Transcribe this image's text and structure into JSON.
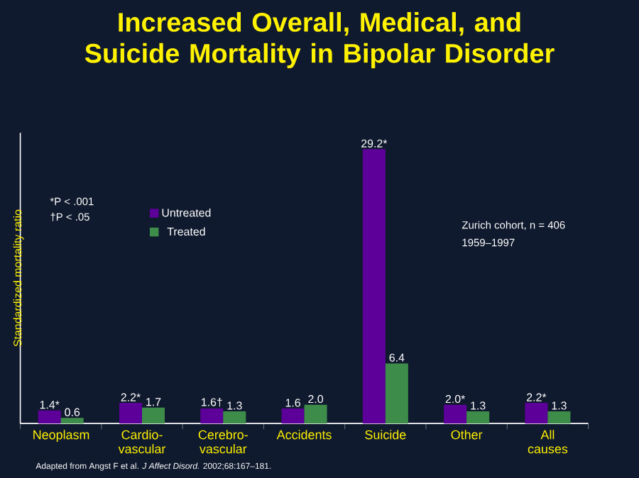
{
  "chart_data": {
    "type": "bar",
    "title": "Increased Overall, Medical, and Suicide Mortality in Bipolar Disorder",
    "ylabel": "Standardized mortality ratio",
    "categories": [
      "Neoplasm",
      "Cardio-vascular",
      "Cerebro-vascular",
      "Accidents",
      "Suicide",
      "Other",
      "All causes"
    ],
    "series": [
      {
        "name": "Untreated",
        "color": "#5c0099",
        "values": [
          1.4,
          2.2,
          1.6,
          1.6,
          29.2,
          2.0,
          2.2
        ],
        "value_labels": [
          "1.4*",
          "2.2*",
          "1.6†",
          "1.6",
          "29.2*",
          "2.0*",
          "2.2*"
        ]
      },
      {
        "name": "Treated",
        "color": "#3e8c4a",
        "values": [
          0.6,
          1.7,
          1.3,
          2.0,
          6.4,
          1.3,
          1.3
        ],
        "value_labels": [
          "0.6",
          "1.7",
          "1.3",
          "2.0",
          "6.4",
          "1.3",
          "1.3"
        ]
      }
    ],
    "legend": "top left",
    "annotations": [
      "*P < .001",
      "†P < .05",
      "Zurich cohort, n = 406",
      "1959–1997",
      "Adapted from Angst F et al. *J Affect Disord.* 2002;68:167–181."
    ]
  }
}
